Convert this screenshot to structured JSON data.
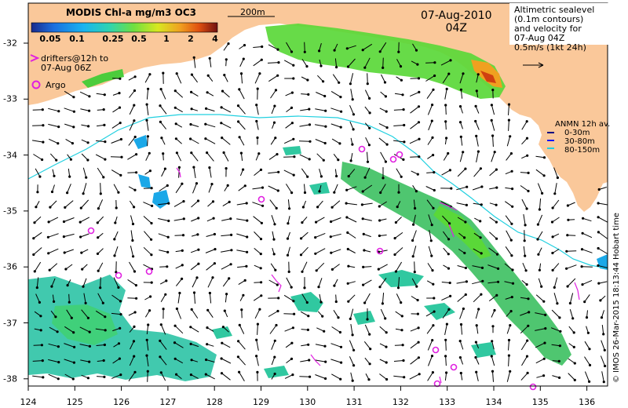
{
  "colorbar": {
    "title": "MODIS Chl-a mg/m3 OC3",
    "ticks": [
      "0.05",
      "0.1",
      "0.25",
      "0.5",
      "1",
      "2",
      "4"
    ],
    "colors": [
      "#1a2a8c",
      "#1b6fe0",
      "#19b4f0",
      "#2fd4b0",
      "#6fe040",
      "#d8e820",
      "#f0a020",
      "#e05010",
      "#b01818",
      "#701010"
    ]
  },
  "scale_label": "200m",
  "datetime": {
    "date": "07-Aug-2010",
    "time": "04Z"
  },
  "altimetry_label": [
    "Altimetric sealevel",
    "(0.1m contours)",
    "and velocity for",
    "07-Aug 04Z",
    "0.5m/s (1kt 24h)"
  ],
  "drifters_legend": [
    "drifters@12h to",
    "07-Aug 06Z"
  ],
  "argo_legend": "Argo",
  "anmn": {
    "title": "ANMN 12h av.",
    "items": [
      "0-30m",
      "30-80m",
      "80-150m"
    ],
    "colors": [
      "#000080",
      "#1010ff",
      "#20d0e0"
    ]
  },
  "credit": "© IMOS 26-Mar-2015 18:13:44 Hobart time",
  "axes": {
    "x_ticks": [
      "124",
      "125",
      "126",
      "127",
      "128",
      "129",
      "130",
      "131",
      "132",
      "133",
      "134",
      "135",
      "136"
    ],
    "y_ticks": [
      "-32",
      "-33",
      "-34",
      "-35",
      "-36",
      "-37",
      "-38"
    ]
  },
  "colors": {
    "land": "#fac89a",
    "isobath": "#20d0e0",
    "argo": "#e020e0",
    "ocean": "#ffffff"
  }
}
